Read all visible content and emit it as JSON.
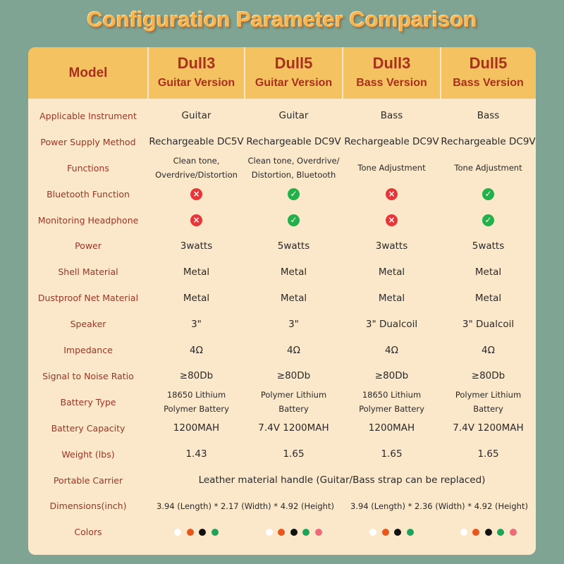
{
  "title": "Configuration Parameter Comparison",
  "header": {
    "model": "Model",
    "columns": [
      {
        "name": "Dull3",
        "version": "Guitar Version"
      },
      {
        "name": "Dull5",
        "version": "Guitar Version"
      },
      {
        "name": "Dull3",
        "version": "Bass Version"
      },
      {
        "name": "Dull5",
        "version": "Bass Version"
      }
    ]
  },
  "rows": [
    {
      "label": "Applicable  Instrument",
      "cells": [
        "Guitar",
        "Guitar",
        "Bass",
        "Bass"
      ]
    },
    {
      "label": "Power Supply Method",
      "cells": [
        "Rechargeable DC5V",
        "Rechargeable DC9V",
        "Rechargeable DC9V",
        "Rechargeable DC9V"
      ]
    },
    {
      "label": "Functions",
      "small": [
        "Clean tone,\nOverdrive/Distortion",
        "Clean tone, Overdrive/\nDistortion, Bluetooth",
        "Tone Adjustment",
        "Tone Adjustment"
      ]
    },
    {
      "label": "Bluetooth Function",
      "checks": [
        false,
        true,
        false,
        true
      ]
    },
    {
      "label": "Monitoring Headphone",
      "checks": [
        false,
        true,
        false,
        true
      ]
    },
    {
      "label": "Power",
      "cells": [
        "3watts",
        "5watts",
        "3watts",
        "5watts"
      ]
    },
    {
      "label": "Shell Material",
      "cells": [
        "Metal",
        "Metal",
        "Metal",
        "Metal"
      ]
    },
    {
      "label": "Dustproof Net Material",
      "cells": [
        "Metal",
        "Metal",
        "Metal",
        "Metal"
      ]
    },
    {
      "label": "Speaker",
      "cells": [
        "3\"",
        "3\"",
        "3\" Dualcoil",
        "3\" Dualcoil"
      ]
    },
    {
      "label": "Impedance",
      "cells": [
        "4Ω",
        "4Ω",
        "4Ω",
        "4Ω"
      ]
    },
    {
      "label": "Signal  to  Noise Ratio",
      "cells": [
        "≥80Db",
        "≥80Db",
        "≥80Db",
        "≥80Db"
      ]
    },
    {
      "label": "Battery Type",
      "small": [
        "18650 Lithium\nPolymer Battery",
        "Polymer Lithium\nBattery",
        "18650 Lithium\nPolymer Battery",
        "Polymer Lithium\nBattery"
      ]
    },
    {
      "label": "Battery Capacity",
      "cells": [
        "1200MAH",
        "7.4V 1200MAH",
        "1200MAH",
        "7.4V 1200MAH"
      ]
    },
    {
      "label": "Weight (lbs)",
      "cells": [
        "1.43",
        "1.65",
        "1.65",
        "1.65"
      ]
    },
    {
      "label": "Portable Carrier",
      "span": "Leather material handle (Guitar/Bass strap can be replaced)"
    },
    {
      "label": "Dimensions(inch)",
      "pairs": [
        "3.94 (Length) * 2.17  (Width) * 4.92 (Height)",
        "3.94 (Length) * 2.36 (Width) * 4.92 (Height)"
      ]
    },
    {
      "label": "Colors",
      "colors": [
        [
          "#ffffff",
          "#e8561c",
          "#111111",
          "#1ea35a"
        ],
        [
          "#ffffff",
          "#e8561c",
          "#111111",
          "#1ea35a",
          "#ee6a78"
        ],
        [
          "#ffffff",
          "#e8561c",
          "#111111",
          "#1ea35a"
        ],
        [
          "#ffffff",
          "#e8561c",
          "#111111",
          "#1ea35a",
          "#ee6a78"
        ]
      ]
    }
  ]
}
